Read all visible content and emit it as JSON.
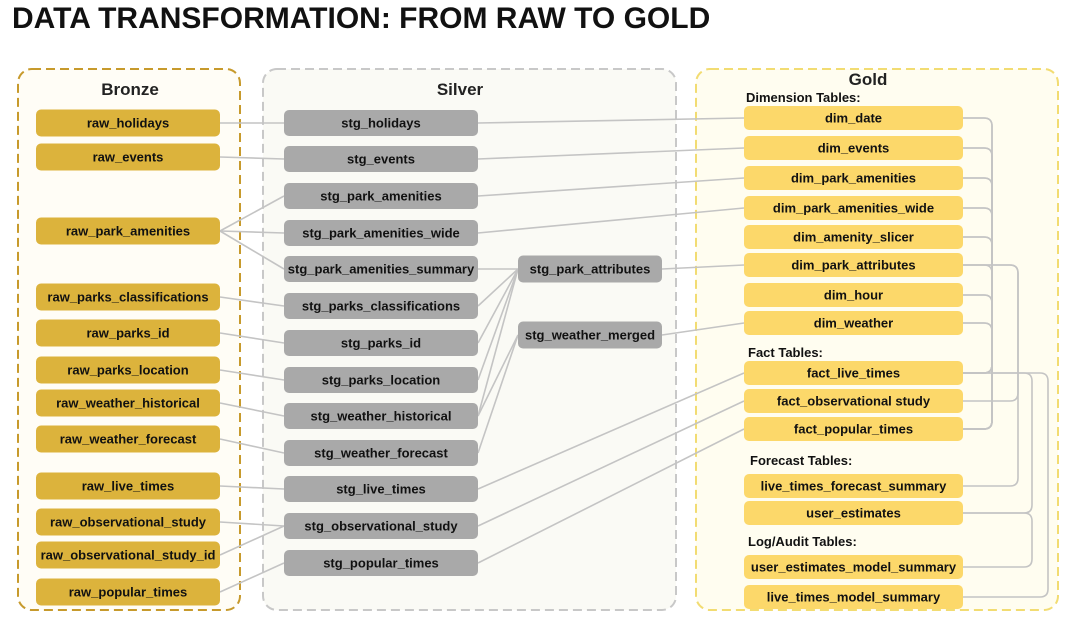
{
  "title": "DATA TRANSFORMATION: FROM RAW TO GOLD",
  "colors": {
    "bronze_fill": "#dcb33c",
    "bronze_border": "#c79a2c",
    "silver_fill": "#a9a9a9",
    "silver_border": "#c8c8c8",
    "gold_fill": "#fcd86a",
    "gold_border": "#f2dc72",
    "connector": "#c4c4c4"
  },
  "panels": {
    "bronze": "Bronze",
    "silver": "Silver",
    "gold": "Gold"
  },
  "gold_sections": {
    "dimension": "Dimension Tables:",
    "fact": "Fact Tables:",
    "forecast": "Forecast Tables:",
    "log": "Log/Audit Tables:"
  },
  "nodes": {
    "bronze": [
      "raw_holidays",
      "raw_events",
      "raw_park_amenities",
      "raw_parks_classifications",
      "raw_parks_id",
      "raw_parks_location",
      "raw_weather_historical",
      "raw_weather_forecast",
      "raw_live_times",
      "raw_observational_study",
      "raw_observational_study_id",
      "raw_popular_times"
    ],
    "silver": [
      "stg_holidays",
      "stg_events",
      "stg_park_amenities",
      "stg_park_amenities_wide",
      "stg_park_amenities_summary",
      "stg_parks_classifications",
      "stg_parks_id",
      "stg_parks_location",
      "stg_weather_historical",
      "stg_weather_forecast",
      "stg_live_times",
      "stg_observational_study",
      "stg_popular_times"
    ],
    "intermediate": [
      "stg_park_attributes",
      "stg_weather_merged"
    ],
    "gold": [
      "dim_date",
      "dim_events",
      "dim_park_amenities",
      "dim_park_amenities_wide",
      "dim_amenity_slicer",
      "dim_park_attributes",
      "dim_hour",
      "dim_weather",
      "fact_live_times",
      "fact_observational study",
      "fact_popular_times",
      "live_times_forecast_summary",
      "user_estimates",
      "user_estimates_model_summary",
      "live_times_model_summary"
    ]
  }
}
